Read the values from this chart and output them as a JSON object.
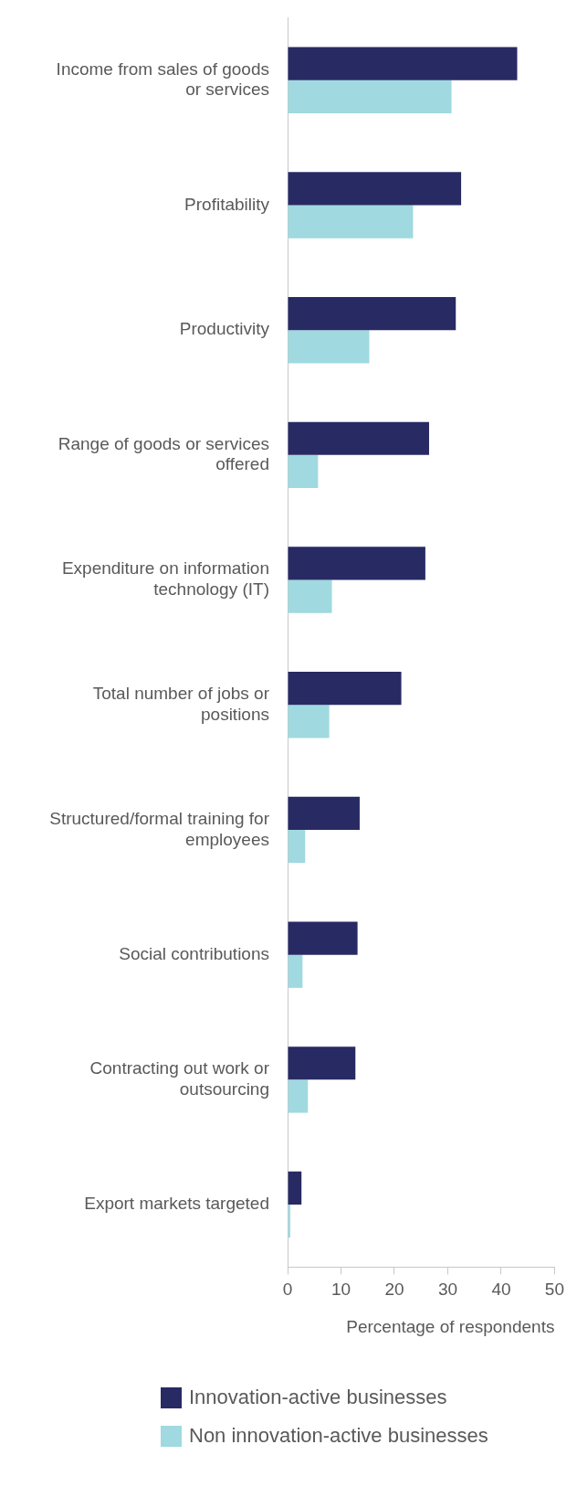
{
  "chart_data": {
    "type": "bar",
    "orientation": "horizontal",
    "xlabel": "Percentage of respondents",
    "categories": [
      "Income from sales of goods or services",
      "Profitability",
      "Productivity",
      "Range of goods or services offered",
      "Expenditure on information technology (IT)",
      "Total number of jobs or positions",
      "Structured/formal training for employees",
      "Social contributions",
      "Contracting out work or outsourcing",
      "Export markets targeted"
    ],
    "series": [
      {
        "name": "Innovation-active businesses",
        "color": "#282a64",
        "values": [
          43.0,
          32.5,
          31.5,
          26.5,
          25.8,
          21.3,
          13.5,
          13.1,
          12.7,
          2.6
        ]
      },
      {
        "name": "Non innovation-active businesses",
        "color": "#a0d9e0",
        "values": [
          30.7,
          23.5,
          15.3,
          5.7,
          8.3,
          7.8,
          3.3,
          2.8,
          3.8,
          0.5
        ]
      }
    ],
    "xlim": [
      0,
      50
    ],
    "xticks": [
      0,
      10,
      20,
      30,
      40,
      50
    ],
    "grid": false,
    "legend": "bottom"
  }
}
